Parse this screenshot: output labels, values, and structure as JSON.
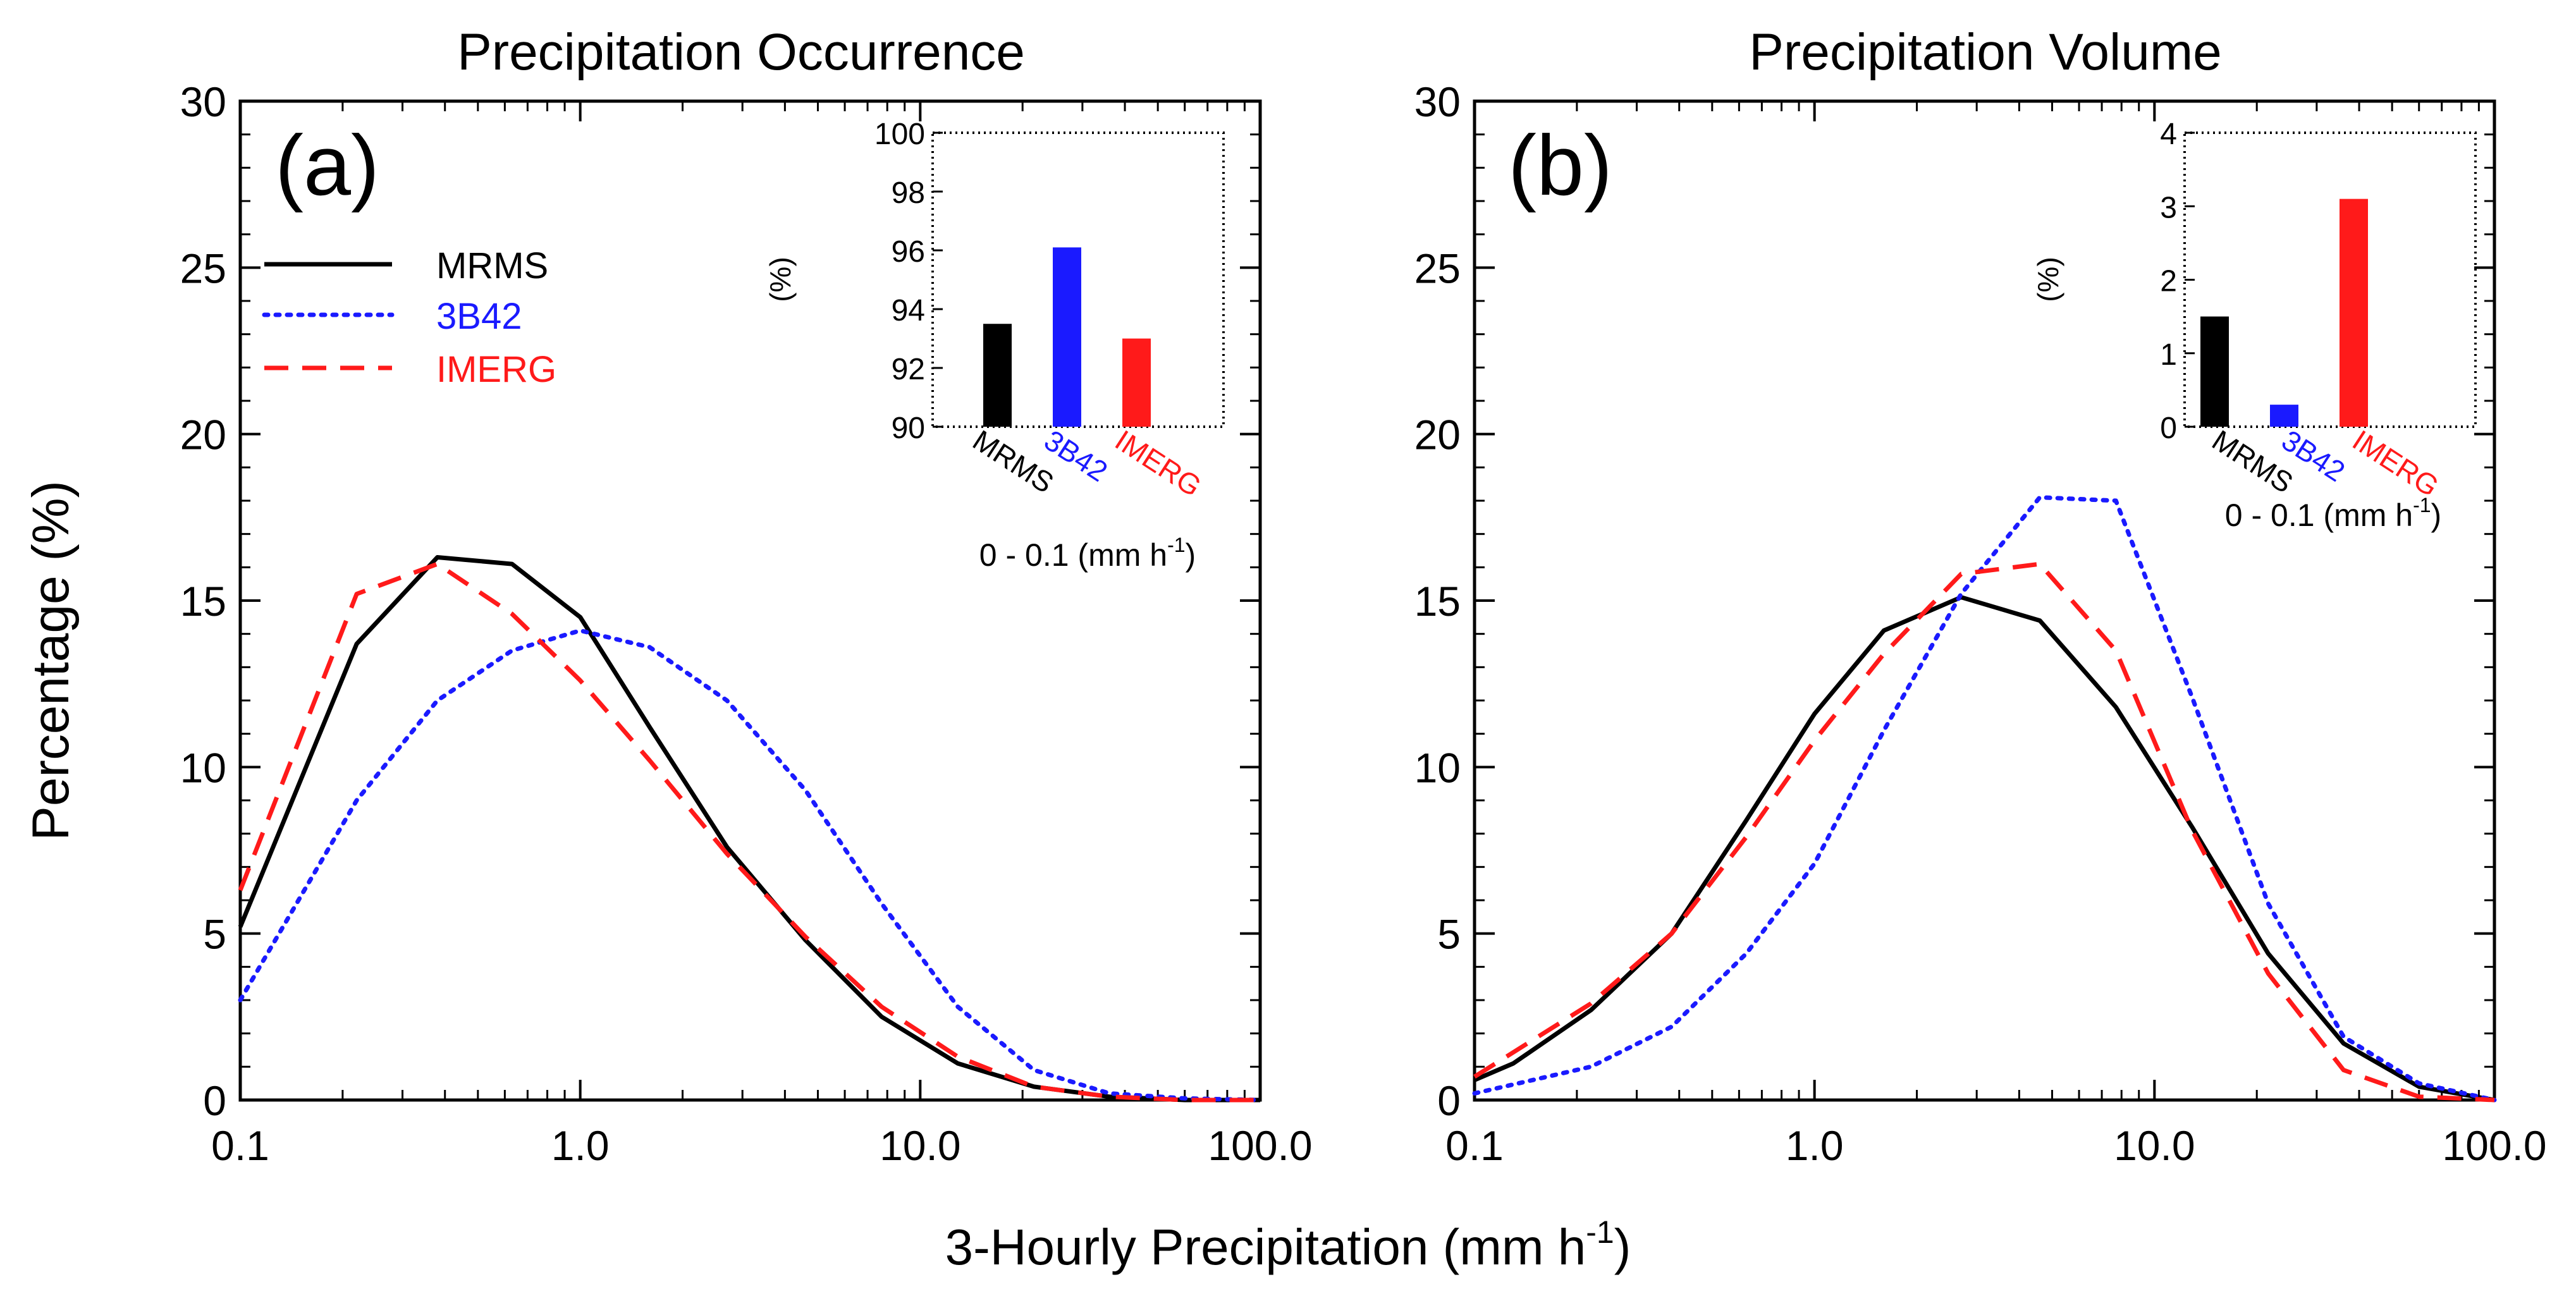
{
  "figure": {
    "xlabel_main": "3-Hourly Precipitation (mm h",
    "xlabel_sup": "-1",
    "xlabel_end": ")",
    "ylabel": "Percentage (%)"
  },
  "legend": [
    {
      "name": "MRMS",
      "color": "#000000",
      "style": "solid"
    },
    {
      "name": "3B42",
      "color": "#1a1aff",
      "style": "dotted"
    },
    {
      "name": "IMERG",
      "color": "#ff1a1a",
      "style": "dashed"
    }
  ],
  "chart_data": [
    {
      "type": "line",
      "panel_label": "(a)",
      "title": "Precipitation Occurrence",
      "xscale": "log",
      "xlim": [
        0.1,
        100.0
      ],
      "ylim": [
        0,
        30
      ],
      "xticks": [
        "0.1",
        "1.0",
        "10.0",
        "100.0"
      ],
      "yticks": [
        "0",
        "5",
        "10",
        "15",
        "20",
        "25",
        "30"
      ],
      "series": [
        {
          "name": "MRMS",
          "x": [
            0.1,
            0.22,
            0.38,
            0.63,
            1.0,
            1.6,
            2.7,
            4.6,
            7.7,
            12.9,
            21.6,
            36,
            60,
            100
          ],
          "y": [
            5.2,
            13.7,
            16.3,
            16.1,
            14.5,
            11.2,
            7.6,
            4.8,
            2.5,
            1.1,
            0.4,
            0.1,
            0.0,
            0.0
          ]
        },
        {
          "name": "3B42",
          "x": [
            0.1,
            0.22,
            0.38,
            0.63,
            1.0,
            1.6,
            2.7,
            4.6,
            7.7,
            12.9,
            21.6,
            36,
            60,
            100
          ],
          "y": [
            3.0,
            9.0,
            12.0,
            13.5,
            14.1,
            13.6,
            12.0,
            9.3,
            5.9,
            2.8,
            0.9,
            0.2,
            0.05,
            0.0
          ]
        },
        {
          "name": "IMERG",
          "x": [
            0.1,
            0.22,
            0.38,
            0.63,
            1.0,
            1.6,
            2.7,
            4.6,
            7.7,
            12.9,
            21.6,
            36,
            60,
            100
          ],
          "y": [
            6.3,
            15.2,
            16.1,
            14.6,
            12.6,
            10.2,
            7.4,
            4.9,
            2.8,
            1.3,
            0.4,
            0.1,
            0.0,
            0.0
          ]
        }
      ],
      "inset": {
        "type": "bar",
        "categories": [
          "MRMS",
          "3B42",
          "IMERG"
        ],
        "values": [
          93.5,
          96.1,
          93.0
        ],
        "colors": [
          "#000000",
          "#1a1aff",
          "#ff1a1a"
        ],
        "ylim": [
          90,
          100
        ],
        "yticks": [
          "90",
          "92",
          "94",
          "96",
          "98",
          "100"
        ],
        "ylabel": "(%)",
        "caption_main": "0 - 0.1 (mm h",
        "caption_sup": "-1",
        "caption_end": ")"
      }
    },
    {
      "type": "line",
      "panel_label": "(b)",
      "title": "Precipitation Volume",
      "xscale": "log",
      "xlim": [
        0.1,
        100.0
      ],
      "ylim": [
        0,
        30
      ],
      "xticks": [
        "0.1",
        "1.0",
        "10.0",
        "100.0"
      ],
      "yticks": [
        "0",
        "5",
        "10",
        "15",
        "20",
        "25",
        "30"
      ],
      "series": [
        {
          "name": "MRMS",
          "x": [
            0.1,
            0.13,
            0.22,
            0.38,
            0.63,
            1.0,
            1.6,
            2.7,
            4.6,
            7.7,
            12.9,
            21.6,
            36,
            60,
            100
          ],
          "y": [
            0.6,
            1.1,
            2.7,
            5.0,
            8.4,
            11.6,
            14.1,
            15.1,
            14.4,
            11.8,
            8.2,
            4.4,
            1.7,
            0.4,
            0.0
          ]
        },
        {
          "name": "3B42",
          "x": [
            0.1,
            0.22,
            0.38,
            0.63,
            1.0,
            1.6,
            2.7,
            4.6,
            7.7,
            12.9,
            21.6,
            36,
            60,
            100
          ],
          "y": [
            0.2,
            1.0,
            2.2,
            4.4,
            7.1,
            11.1,
            15.2,
            18.1,
            18.0,
            12.1,
            5.9,
            1.9,
            0.5,
            0.0
          ]
        },
        {
          "name": "IMERG",
          "x": [
            0.1,
            0.22,
            0.38,
            0.63,
            1.0,
            1.6,
            2.7,
            4.6,
            7.7,
            12.9,
            21.6,
            36,
            60,
            100
          ],
          "y": [
            0.7,
            2.9,
            5.0,
            7.9,
            10.8,
            13.4,
            15.8,
            16.1,
            13.5,
            8.1,
            3.8,
            0.9,
            0.1,
            0.0
          ]
        }
      ],
      "inset": {
        "type": "bar",
        "categories": [
          "MRMS",
          "3B42",
          "IMERG"
        ],
        "values": [
          1.5,
          0.3,
          3.1
        ],
        "colors": [
          "#000000",
          "#1a1aff",
          "#ff1a1a"
        ],
        "ylim": [
          0,
          4
        ],
        "yticks": [
          "0",
          "1",
          "2",
          "3",
          "4"
        ],
        "ylabel": "(%)",
        "caption_main": "0 - 0.1 (mm h",
        "caption_sup": "-1",
        "caption_end": ")"
      }
    }
  ]
}
